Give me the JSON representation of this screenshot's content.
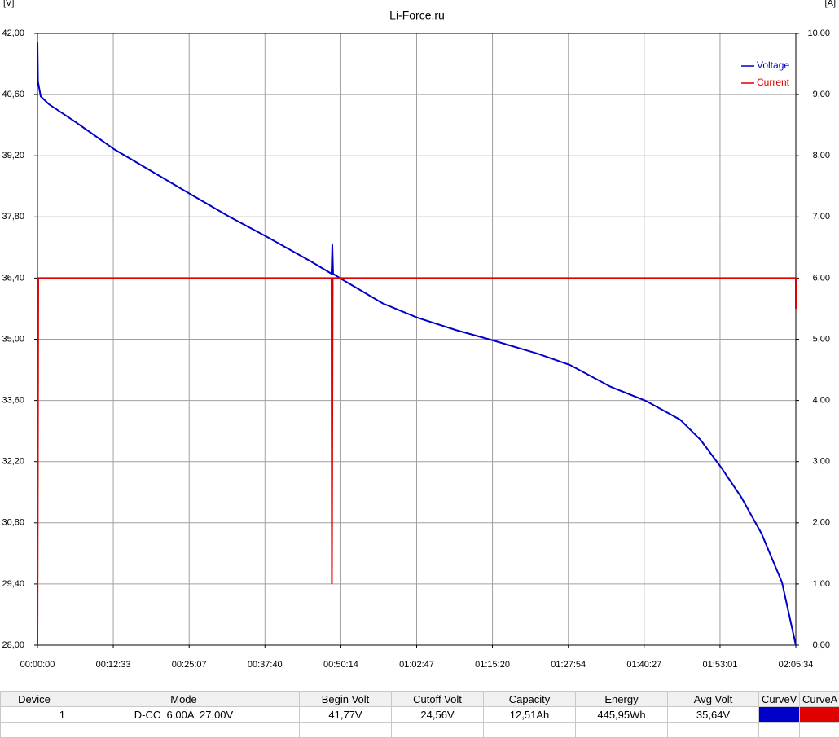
{
  "chart_data": {
    "type": "line",
    "title": "Li-Force.ru",
    "y_unit": "[V]",
    "y2_unit": "[A]",
    "xlim": [
      0,
      7534
    ],
    "xticks": [
      {
        "value": 0,
        "label": "00:00:00"
      },
      {
        "value": 753,
        "label": "00:12:33"
      },
      {
        "value": 1507,
        "label": "00:25:07"
      },
      {
        "value": 2260,
        "label": "00:37:40"
      },
      {
        "value": 3014,
        "label": "00:50:14"
      },
      {
        "value": 3767,
        "label": "01:02:47"
      },
      {
        "value": 4520,
        "label": "01:15:20"
      },
      {
        "value": 5274,
        "label": "01:27:54"
      },
      {
        "value": 6027,
        "label": "01:40:27"
      },
      {
        "value": 6781,
        "label": "01:53:01"
      },
      {
        "value": 7534,
        "label": "02:05:34"
      }
    ],
    "ylim": [
      28,
      42
    ],
    "yticks": [
      {
        "value": 28,
        "label": "28,00"
      },
      {
        "value": 29.4,
        "label": "29,40"
      },
      {
        "value": 30.8,
        "label": "30,80"
      },
      {
        "value": 32.2,
        "label": "32,20"
      },
      {
        "value": 33.6,
        "label": "33,60"
      },
      {
        "value": 35,
        "label": "35,00"
      },
      {
        "value": 36.4,
        "label": "36,40"
      },
      {
        "value": 37.8,
        "label": "37,80"
      },
      {
        "value": 39.2,
        "label": "39,20"
      },
      {
        "value": 40.6,
        "label": "40,60"
      },
      {
        "value": 42,
        "label": "42,00"
      }
    ],
    "y2lim": [
      0,
      10
    ],
    "y2ticks": [
      {
        "value": 0,
        "label": "0,00"
      },
      {
        "value": 1,
        "label": "1,00"
      },
      {
        "value": 2,
        "label": "2,00"
      },
      {
        "value": 3,
        "label": "3,00"
      },
      {
        "value": 4,
        "label": "4,00"
      },
      {
        "value": 5,
        "label": "5,00"
      },
      {
        "value": 6,
        "label": "6,00"
      },
      {
        "value": 7,
        "label": "7,00"
      },
      {
        "value": 8,
        "label": "8,00"
      },
      {
        "value": 9,
        "label": "9,00"
      },
      {
        "value": 10,
        "label": "10,00"
      }
    ],
    "grid": true,
    "legend": "top-right",
    "series": [
      {
        "name": "Voltage",
        "color": "#0000c8",
        "x": [
          0,
          5,
          32,
          113,
          380,
          761,
          1513,
          1894,
          2266,
          2703,
          2921,
          2929,
          2937,
          3026,
          3431,
          3779,
          4159,
          4532,
          4969,
          5292,
          5697,
          6045,
          6385,
          6587,
          6797,
          6991,
          7194,
          7396,
          7534
        ],
        "values": [
          41.79,
          40.9,
          40.56,
          40.38,
          39.97,
          39.35,
          38.33,
          37.82,
          37.36,
          36.8,
          36.5,
          37.17,
          36.5,
          36.37,
          35.82,
          35.49,
          35.21,
          34.97,
          34.67,
          34.41,
          33.91,
          33.59,
          33.16,
          32.7,
          32.05,
          31.39,
          30.55,
          29.44,
          28.0
        ]
      },
      {
        "name": "Current",
        "color": "#e00000",
        "axis": "y2",
        "x": [
          0,
          8,
          2921,
          2925,
          2933,
          7534,
          7534
        ],
        "values": [
          0,
          6,
          6,
          1.0,
          6,
          6,
          5.5
        ]
      }
    ]
  },
  "table": {
    "columns": [
      "Device",
      "Mode",
      "Begin Volt",
      "Cutoff Volt",
      "Capacity",
      "Energy",
      "Avg Volt",
      "CurveV",
      "CurveA"
    ],
    "rows": [
      [
        "1",
        "D-CC  6,00A  27,00V",
        "41,77V",
        "24,56V",
        "12,51Ah",
        "445,95Wh",
        "35,64V"
      ]
    ]
  }
}
